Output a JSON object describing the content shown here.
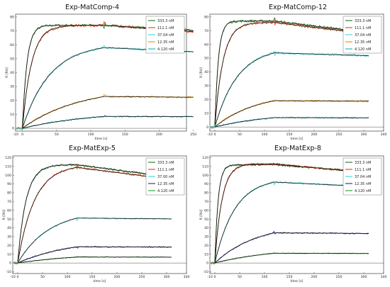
{
  "chart_data": [
    {
      "type": "line",
      "title": "Exp-MatComp-4",
      "xlabel": "time [s]",
      "ylabel": "R [RU]",
      "xlim": [
        -10,
        240
      ],
      "ylim": [
        -2,
        82
      ],
      "xticks": [
        -10,
        0,
        50,
        100,
        150,
        200,
        250
      ],
      "yticks": [
        0,
        10,
        20,
        30,
        40,
        50,
        60,
        70,
        80
      ],
      "legend_position": "top-right",
      "t_end_assoc": 120,
      "t_end": 250,
      "series": [
        {
          "name": "333.3 nM",
          "color": "#2e7d32",
          "rmax": 74,
          "kobs": 0.15,
          "koff": 0.0004
        },
        {
          "name": "111.1 nM",
          "color": "#e8501f",
          "rmax": 74,
          "kobs": 0.075,
          "koff": 0.0005
        },
        {
          "name": "37.04 nM",
          "color": "#4fd8dc",
          "rmax": 61,
          "kobs": 0.025,
          "koff": 0.0004
        },
        {
          "name": "12.35 nM",
          "color": "#e89a1a",
          "rmax": 30,
          "kobs": 0.012,
          "koff": 0.0002
        },
        {
          "name": "4.120 nM",
          "color": "#29b6c6",
          "rmax": 13,
          "kobs": 0.009,
          "koff": 0.0002
        }
      ]
    },
    {
      "type": "line",
      "title": "Exp-MatComp-12",
      "xlabel": "time [s]",
      "ylabel": "R [RU]",
      "xlim": [
        -10,
        340
      ],
      "ylim": [
        -3,
        82
      ],
      "xticks": [
        -10,
        0,
        50,
        100,
        150,
        200,
        250,
        300,
        340
      ],
      "yticks": [
        0,
        10,
        20,
        30,
        40,
        50,
        60,
        70,
        80
      ],
      "legend_position": "top-right",
      "t_end_assoc": 120,
      "t_end": 310,
      "series": [
        {
          "name": "333.3 nM",
          "color": "#2e7d32",
          "rmax": 77,
          "kobs": 0.14,
          "koff": 0.0006
        },
        {
          "name": "111.1 nM",
          "color": "#e8501f",
          "rmax": 76,
          "kobs": 0.06,
          "koff": 0.0006
        },
        {
          "name": "37.04 nM",
          "color": "#4fd8dc",
          "rmax": 58,
          "kobs": 0.022,
          "koff": 0.0002
        },
        {
          "name": "12.35 nM",
          "color": "#e89a1a",
          "rmax": 25,
          "kobs": 0.012,
          "koff": 0.0001
        },
        {
          "name": "4.120 nM",
          "color": "#29b6c6",
          "rmax": 11,
          "kobs": 0.008,
          "koff": 0.0001
        }
      ]
    },
    {
      "type": "line",
      "title": "Exp-MatExp-5",
      "xlabel": "time [s]",
      "ylabel": "R [RU]",
      "xlim": [
        -10,
        340
      ],
      "ylim": [
        -12,
        122
      ],
      "xticks": [
        -10,
        0,
        50,
        100,
        150,
        200,
        250,
        300,
        340
      ],
      "yticks": [
        -10,
        0,
        10,
        20,
        30,
        40,
        50,
        60,
        70,
        80,
        90,
        100,
        110,
        120
      ],
      "legend_position": "top-right",
      "t_end_assoc": 120,
      "t_end": 310,
      "series": [
        {
          "name": "333.3 nM",
          "color": "#2e7d32",
          "rmax": 112,
          "kobs": 0.06,
          "koff": 0.0007
        },
        {
          "name": "111.1 nM",
          "color": "#e8501f",
          "rmax": 112,
          "kobs": 0.03,
          "koff": 0.0007
        },
        {
          "name": "37.00 nM",
          "color": "#4fd8dc",
          "rmax": 60,
          "kobs": 0.016,
          "koff": 0.0001
        },
        {
          "name": "12.35 nM",
          "color": "#3a3a9e",
          "rmax": 28,
          "kobs": 0.009,
          "koff": 0.0001
        },
        {
          "name": "4.120 nM",
          "color": "#3aa83a",
          "rmax": 12,
          "kobs": 0.007,
          "koff": 0.0001
        }
      ]
    },
    {
      "type": "line",
      "title": "Exp-MatExp-8",
      "xlabel": "time [s]",
      "ylabel": "R [RU]",
      "xlim": [
        -10,
        340
      ],
      "ylim": [
        -12,
        122
      ],
      "xticks": [
        -10,
        0,
        50,
        100,
        150,
        200,
        250,
        300,
        340
      ],
      "yticks": [
        -10,
        0,
        10,
        20,
        30,
        40,
        50,
        60,
        70,
        80,
        90,
        100,
        110,
        120
      ],
      "legend_position": "top-right",
      "t_end_assoc": 120,
      "t_end": 310,
      "series": [
        {
          "name": "333.3 nM",
          "color": "#2e7d32",
          "rmax": 112,
          "kobs": 0.15,
          "koff": 0.0004
        },
        {
          "name": "111.1 nM",
          "color": "#e8501f",
          "rmax": 113,
          "kobs": 0.07,
          "koff": 0.0005
        },
        {
          "name": "37.04 nM",
          "color": "#4fd8dc",
          "rmax": 97,
          "kobs": 0.025,
          "koff": 0.0003
        },
        {
          "name": "12.35 nM",
          "color": "#3a3a9e",
          "rmax": 45,
          "kobs": 0.012,
          "koff": 0.0001
        },
        {
          "name": "4.120 nM",
          "color": "#3aa83a",
          "rmax": 18,
          "kobs": 0.008,
          "koff": 0.0001
        }
      ]
    }
  ]
}
